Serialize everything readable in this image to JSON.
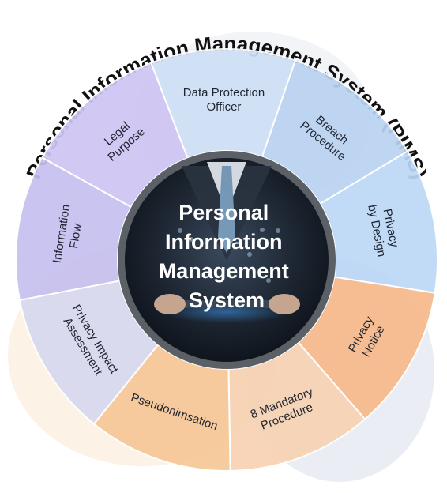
{
  "title": "Personal Information Management System (PIMS)",
  "center": {
    "lines": [
      "Personal",
      "Information",
      "Management",
      "System"
    ]
  },
  "segments": [
    {
      "lines": [
        "Data Protection",
        "Officer"
      ],
      "color": "#cfe0f5"
    },
    {
      "lines": [
        "Breach",
        "Procedure"
      ],
      "color": "#b9d3f1"
    },
    {
      "lines": [
        "Privacy",
        "by Design"
      ],
      "color": "#bcd7f6"
    },
    {
      "lines": [
        "Privacy",
        "Notice"
      ],
      "color": "#f7b98a"
    },
    {
      "lines": [
        "8 Mandatory",
        "Procedure"
      ],
      "color": "#f8d2b2"
    },
    {
      "lines": [
        "Pseudonimsation"
      ],
      "color": "#f6c796"
    },
    {
      "lines": [
        "Privacy Impact",
        "Assessment"
      ],
      "color": "#d8d8ef"
    },
    {
      "lines": [
        "Information",
        "Flow"
      ],
      "color": "#c6c0ef"
    },
    {
      "lines": [
        "Legal",
        "Purpose"
      ],
      "color": "#cec5f3"
    }
  ],
  "colors": {
    "title": "#111111",
    "ring_border": "#ffffff",
    "hub_ring": "#5b5f66",
    "hub_fill": "#1d2430"
  }
}
